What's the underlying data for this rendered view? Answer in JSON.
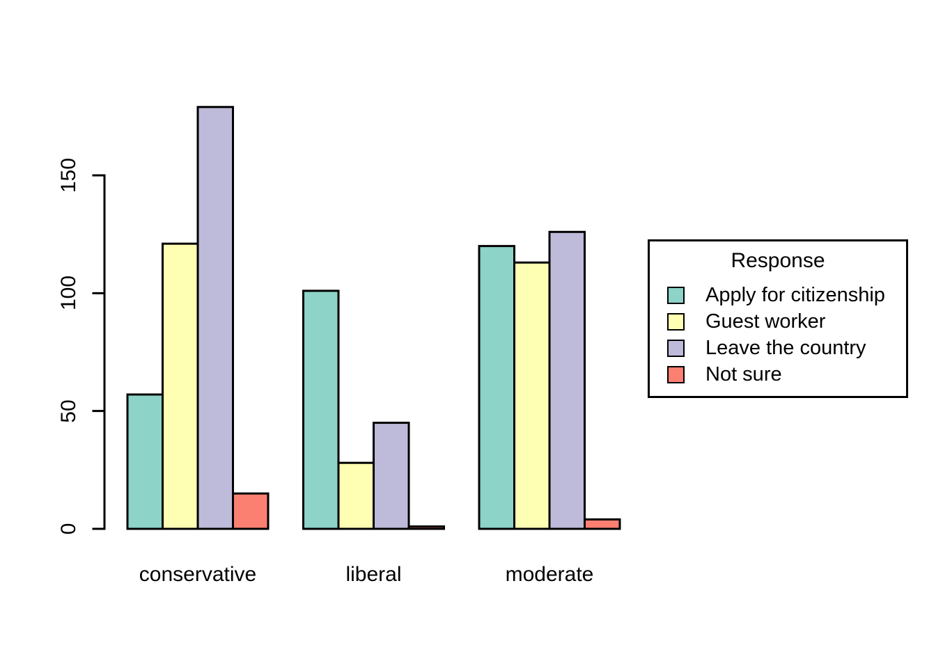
{
  "chart_data": {
    "type": "bar",
    "title": "",
    "categories": [
      "conservative",
      "liberal",
      "moderate"
    ],
    "series": [
      {
        "name": "Apply for citizenship",
        "color": "#8DD3C7",
        "values": [
          57,
          101,
          120
        ]
      },
      {
        "name": "Guest worker",
        "color": "#FFFFB3",
        "values": [
          121,
          28,
          113
        ]
      },
      {
        "name": "Leave the country",
        "color": "#BEBADA",
        "values": [
          179,
          45,
          126
        ]
      },
      {
        "name": "Not sure",
        "color": "#FB8072",
        "values": [
          15,
          1,
          4
        ]
      }
    ],
    "xlabel": "",
    "ylabel": "",
    "ylim": [
      0,
      183
    ],
    "yticks": [
      0,
      50,
      100,
      150
    ],
    "grid": false,
    "bar_layout": "grouped",
    "legend": {
      "title": "Response",
      "position": "right"
    },
    "colors": {
      "axis": "#000000",
      "bar_border": "#000000",
      "text": "#000000",
      "background": "#FFFFFF"
    }
  }
}
